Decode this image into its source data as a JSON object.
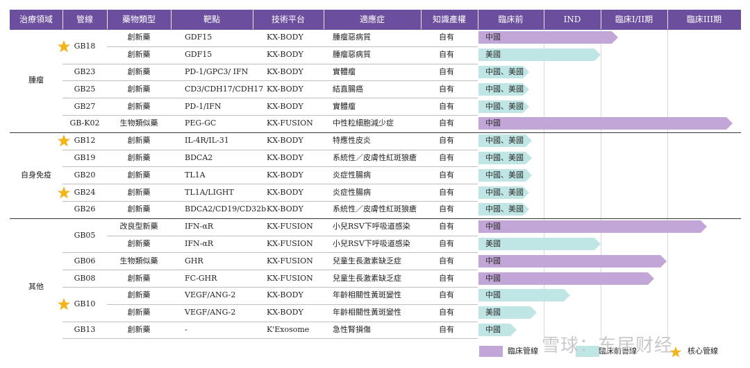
{
  "header": {
    "columns": [
      "治療領域",
      "管線",
      "藥物類型",
      "靶點",
      "技術平台",
      "適應症",
      "知識產權"
    ],
    "stages": [
      "臨床前",
      "IND",
      "臨床I/II期",
      "臨床III期"
    ]
  },
  "groups": [
    {
      "name": "腫瘤",
      "rows": [
        0,
        5
      ]
    },
    {
      "name": "自身免疫",
      "rows": [
        6,
        10
      ]
    },
    {
      "name": "其他",
      "rows": [
        11,
        18
      ]
    }
  ],
  "pipeline_names": [
    {
      "name": "GB18",
      "rows": [
        0,
        1
      ],
      "star": true
    },
    {
      "name": "GB23",
      "rows": [
        2,
        2
      ],
      "star": false
    },
    {
      "name": "GB25",
      "rows": [
        3,
        3
      ],
      "star": false
    },
    {
      "name": "GB27",
      "rows": [
        4,
        4
      ],
      "star": false
    },
    {
      "name": "GB-K02",
      "rows": [
        5,
        5
      ],
      "star": false
    },
    {
      "name": "GB12",
      "rows": [
        6,
        6
      ],
      "star": true
    },
    {
      "name": "GB19",
      "rows": [
        7,
        7
      ],
      "star": false
    },
    {
      "name": "GB20",
      "rows": [
        8,
        8
      ],
      "star": false
    },
    {
      "name": "GB24",
      "rows": [
        9,
        9
      ],
      "star": true
    },
    {
      "name": "GB26",
      "rows": [
        10,
        10
      ],
      "star": false
    },
    {
      "name": "GB05",
      "rows": [
        11,
        12
      ],
      "star": false
    },
    {
      "name": "GB06",
      "rows": [
        13,
        13
      ],
      "star": false
    },
    {
      "name": "GB08",
      "rows": [
        14,
        14
      ],
      "star": false
    },
    {
      "name": "GB10",
      "rows": [
        15,
        16
      ],
      "star": true
    },
    {
      "name": "GB13",
      "rows": [
        17,
        17
      ],
      "star": false
    }
  ],
  "rows": [
    {
      "type": "創新藥",
      "target": "GDF15",
      "platform": "KX-BODY",
      "indication": "腫瘤惡病質",
      "ip": "自有",
      "region": "中國",
      "bar": "clinical",
      "progress": 0.55
    },
    {
      "type": "創新藥",
      "target": "GDF15",
      "platform": "KX-BODY",
      "indication": "腫瘤惡病質",
      "ip": "自有",
      "region": "美國",
      "bar": "preclinical",
      "progress": 0.48
    },
    {
      "type": "創新藥",
      "target": "PD-1/GPC3/ IFN",
      "platform": "KX-BODY",
      "indication": "實體瘤",
      "ip": "自有",
      "region": "中國、美國",
      "bar": "preclinical",
      "progress": 0.2
    },
    {
      "type": "創新藥",
      "target": "CD3/CDH17/CDH17",
      "platform": "KX-BODY",
      "indication": "結直腸癌",
      "ip": "自有",
      "region": "中國、美國",
      "bar": "preclinical",
      "progress": 0.2
    },
    {
      "type": "創新藥",
      "target": "PD-1/IFN",
      "platform": "KX-BODY",
      "indication": "實體瘤",
      "ip": "自有",
      "region": "中國、美國",
      "bar": "preclinical",
      "progress": 0.2
    },
    {
      "type": "生物類似藥",
      "target": "PEG-GC",
      "platform": "KX-FUSION",
      "indication": "中性粒細胞減少症",
      "ip": "自有",
      "region": "中國",
      "bar": "clinical",
      "progress": 1.0
    },
    {
      "type": "創新藥",
      "target": "IL-4R/IL-31",
      "platform": "KX-BODY",
      "indication": "特應性皮炎",
      "ip": "自有",
      "region": "中國、美國",
      "bar": "preclinical",
      "progress": 0.21
    },
    {
      "type": "創新藥",
      "target": "BDCA2",
      "platform": "KX-BODY",
      "indication": "系統性／皮膚性紅斑狼瘡",
      "ip": "自有",
      "region": "中國、美國",
      "bar": "preclinical",
      "progress": 0.21
    },
    {
      "type": "創新藥",
      "target": "TL1A",
      "platform": "KX-BODY",
      "indication": "炎症性腸病",
      "ip": "自有",
      "region": "中國、美國",
      "bar": "preclinical",
      "progress": 0.21
    },
    {
      "type": "創新藥",
      "target": "TL1A/LIGHT",
      "platform": "KX-BODY",
      "indication": "炎症性腸病",
      "ip": "自有",
      "region": "中國、美國",
      "bar": "preclinical",
      "progress": 0.2
    },
    {
      "type": "創新藥",
      "target": "BDCA2/CD19/CD32b",
      "platform": "KX-BODY",
      "indication": "系統性／皮膚性紅斑狼瘡",
      "ip": "自有",
      "region": "中國、美國",
      "bar": "preclinical",
      "progress": 0.2
    },
    {
      "type": "改良型新藥",
      "target": "IFN-αR",
      "platform": "KX-FUSION",
      "indication": "小兒RSV下呼吸道感染",
      "ip": "自有",
      "region": "中國",
      "bar": "clinical",
      "progress": 0.9
    },
    {
      "type": "創新藥",
      "target": "IFN-αR",
      "platform": "KX-FUSION",
      "indication": "小兒RSV下呼吸道感染",
      "ip": "自有",
      "region": "美國",
      "bar": "preclinical",
      "progress": 0.48
    },
    {
      "type": "生物類似藥",
      "target": "GHR",
      "platform": "KX-FUSION",
      "indication": "兒童生長激素缺乏症",
      "ip": "自有",
      "region": "中國",
      "bar": "clinical",
      "progress": 0.74
    },
    {
      "type": "創新藥",
      "target": "FC-GHR",
      "platform": "KX-FUSION",
      "indication": "兒童生長激素缺乏症",
      "ip": "自有",
      "region": "中國",
      "bar": "clinical",
      "progress": 0.69
    },
    {
      "type": "創新藥",
      "target": "VEGF/ANG-2",
      "platform": "KX-BODY",
      "indication": "年齡相關性黃斑變性",
      "ip": "自有",
      "region": "中國",
      "bar": "preclinical",
      "progress": 0.36
    },
    {
      "type": "創新藥",
      "target": "VEGF/ANG-2",
      "platform": "KX-BODY",
      "indication": "年齡相關性黃斑變性",
      "ip": "自有",
      "region": "美國",
      "bar": "preclinical",
      "progress": 0.23
    },
    {
      "type": "創新藥",
      "target": "-",
      "platform": "K'Exosome",
      "indication": "急性腎損傷",
      "ip": "自有",
      "region": "中國",
      "bar": "preclinical",
      "progress": 0.15
    }
  ],
  "legend": {
    "clinical_label": "臨床管線",
    "preclinical_label": "臨床前管線",
    "core_label": "核心管線"
  },
  "watermark": "雪球：东居财经",
  "colors": {
    "header_bg": "#6b4f9e",
    "clinical_bar": "#c3a6d8",
    "preclinical_bar": "#bfe6e4",
    "star": "#f3b31b"
  }
}
